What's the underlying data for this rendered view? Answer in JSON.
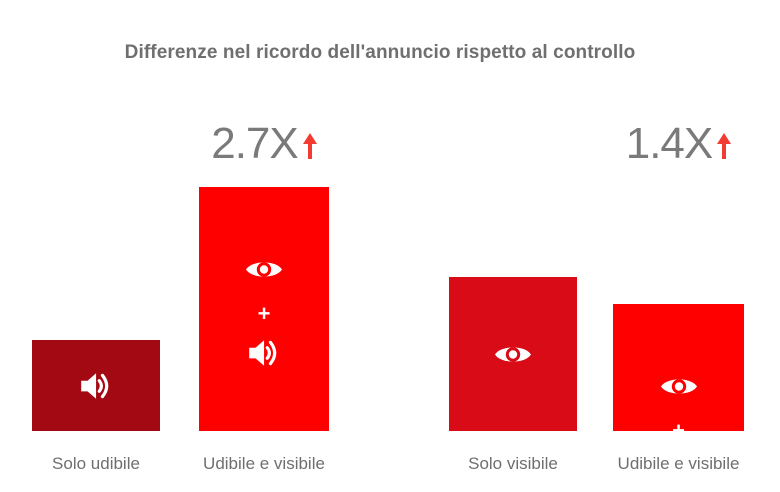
{
  "chart_data": {
    "type": "bar",
    "title": "Differenze nel ricordo dell'annuncio rispetto al controllo",
    "categories": [
      "Solo udibile",
      "Udibile e visibile",
      "Solo visibile",
      "Udibile e visibile"
    ],
    "values": [
      1.0,
      2.7,
      1.7,
      1.4
    ],
    "multipliers": [
      "",
      "2.7X",
      "",
      "1.4X"
    ],
    "bar_colors": [
      "#a20913",
      "#ff0000",
      "#d80b17",
      "#ff0000"
    ],
    "icons": [
      [
        "speaker-icon"
      ],
      [
        "eye-icon",
        "plus",
        "speaker-icon"
      ],
      [
        "eye-icon"
      ],
      [
        "eye-icon",
        "plus",
        "speaker-icon"
      ]
    ],
    "plus_text": "+",
    "arrow_color": "#f23c31",
    "xlabel": "",
    "ylabel": "",
    "grid": false,
    "legend": "none"
  }
}
